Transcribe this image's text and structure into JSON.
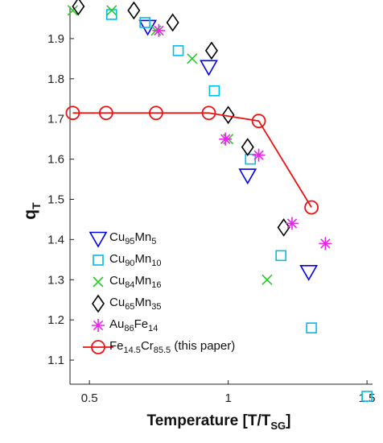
{
  "chart_data": {
    "type": "scatter",
    "xlabel": "Temperature [T/T",
    "xlabel_sub": "SG",
    "xlabel_end": "]",
    "ylabel": "q",
    "ylabel_sub": "T",
    "xlim": [
      0.43,
      1.52
    ],
    "ylim": [
      1.04,
      1.98
    ],
    "xticks": [
      0.5,
      1,
      1.5
    ],
    "yticks": [
      1.1,
      1.2,
      1.3,
      1.4,
      1.5,
      1.6,
      1.7,
      1.8,
      1.9
    ],
    "grid": false,
    "legend_position": "bottom-left",
    "series": [
      {
        "name_parts": [
          [
            "Cu",
            ""
          ],
          [
            "95",
            "sub"
          ],
          [
            "Mn",
            ""
          ],
          [
            "5",
            "sub"
          ]
        ],
        "marker": "triangle-down",
        "color": "#0000ee",
        "points": [
          [
            0.71,
            1.93
          ],
          [
            0.93,
            1.83
          ],
          [
            1.07,
            1.56
          ],
          [
            1.29,
            1.32
          ]
        ]
      },
      {
        "name_parts": [
          [
            "Cu",
            ""
          ],
          [
            "90",
            "sub"
          ],
          [
            "Mn",
            ""
          ],
          [
            "10",
            "sub"
          ]
        ],
        "marker": "square",
        "color": "#00bbee",
        "points": [
          [
            0.58,
            1.96
          ],
          [
            0.7,
            1.94
          ],
          [
            0.82,
            1.87
          ],
          [
            0.95,
            1.77
          ],
          [
            1.08,
            1.6
          ],
          [
            1.19,
            1.36
          ],
          [
            1.3,
            1.18
          ],
          [
            1.5,
            1.01
          ]
        ]
      },
      {
        "name_parts": [
          [
            "Cu",
            ""
          ],
          [
            "84",
            "sub"
          ],
          [
            "Mn",
            ""
          ],
          [
            "16",
            "sub"
          ]
        ],
        "marker": "x",
        "color": "#22cc22",
        "points": [
          [
            0.44,
            1.97
          ],
          [
            0.58,
            1.97
          ],
          [
            0.74,
            1.92
          ],
          [
            0.87,
            1.85
          ],
          [
            1.0,
            1.65
          ],
          [
            1.14,
            1.3
          ]
        ]
      },
      {
        "name_parts": [
          [
            "Cu",
            ""
          ],
          [
            "65",
            "sub"
          ],
          [
            "Mn",
            ""
          ],
          [
            "35",
            "sub"
          ]
        ],
        "marker": "diamond",
        "color": "#000000",
        "points": [
          [
            0.46,
            1.98
          ],
          [
            0.66,
            1.97
          ],
          [
            0.8,
            1.94
          ],
          [
            0.94,
            1.87
          ],
          [
            1.0,
            1.71
          ],
          [
            1.07,
            1.63
          ],
          [
            1.2,
            1.43
          ]
        ]
      },
      {
        "name_parts": [
          [
            "Au",
            ""
          ],
          [
            "86",
            "sub"
          ],
          [
            "Fe",
            ""
          ],
          [
            "14",
            "sub"
          ]
        ],
        "marker": "asterisk",
        "color": "#ee22ee",
        "points": [
          [
            0.75,
            1.92
          ],
          [
            0.99,
            1.65
          ],
          [
            1.11,
            1.61
          ],
          [
            1.23,
            1.44
          ],
          [
            1.35,
            1.39
          ]
        ]
      },
      {
        "name_parts": [
          [
            "Fe",
            ""
          ],
          [
            "14.5",
            "sub"
          ],
          [
            "Cr",
            ""
          ],
          [
            "85.5",
            "sub"
          ],
          [
            " (this paper)",
            ""
          ]
        ],
        "marker": "circle-line",
        "color": "#ee1111",
        "points": [
          [
            0.44,
            1.715
          ],
          [
            0.56,
            1.715
          ],
          [
            0.74,
            1.715
          ],
          [
            0.93,
            1.715
          ],
          [
            1.11,
            1.695
          ],
          [
            1.3,
            1.48
          ]
        ]
      }
    ]
  }
}
